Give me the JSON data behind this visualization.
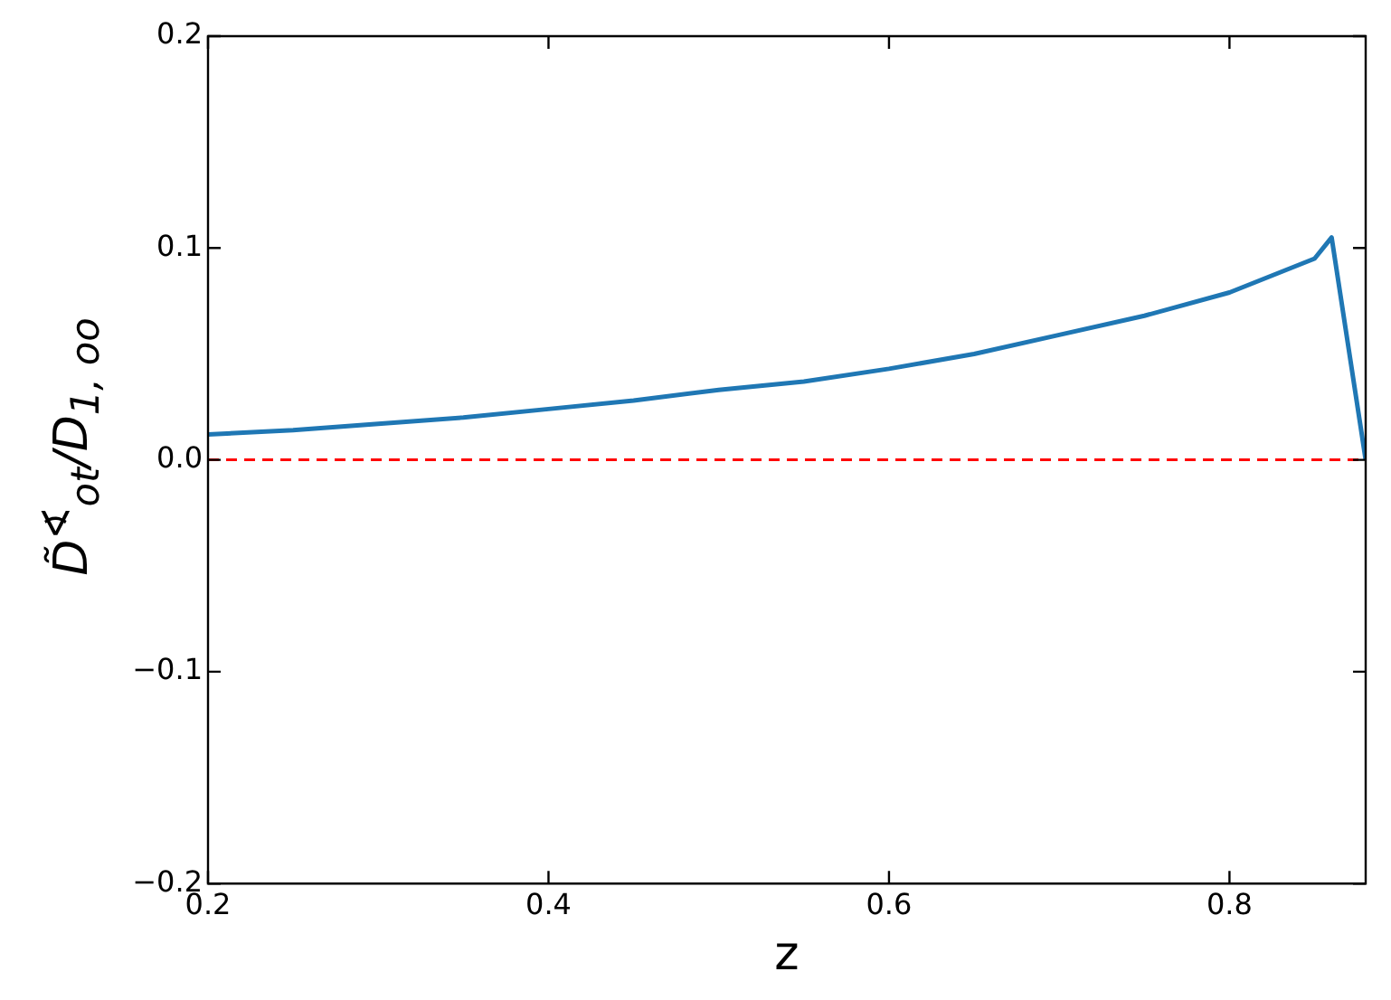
{
  "chart_data": {
    "type": "line",
    "xlabel": "z",
    "ylabel": "D̃$^{∢}$$_{ot}$/D$_{1, oo}$",
    "x": [
      0.2,
      0.25,
      0.3,
      0.35,
      0.4,
      0.45,
      0.5,
      0.55,
      0.6,
      0.65,
      0.7,
      0.75,
      0.8,
      0.85,
      0.86,
      0.88
    ],
    "series": [
      {
        "color": "#1f77b4",
        "values": [
          0.012,
          0.014,
          0.017,
          0.02,
          0.024,
          0.028,
          0.033,
          0.037,
          0.043,
          0.05,
          0.059,
          0.068,
          0.079,
          0.095,
          0.105,
          0.0
        ]
      }
    ],
    "xlim": [
      0.2,
      0.88
    ],
    "xticks": [
      0.2,
      0.4,
      0.6,
      0.8
    ],
    "ylim": [
      -0.2,
      0.2
    ],
    "yticks": [
      {
        "value": -0.2,
        "label": "−0.2"
      },
      {
        "value": -0.1,
        "label": "−0.1"
      },
      {
        "value": 0,
        "label": "0.0"
      },
      {
        "value": 0.1,
        "label": "0.1"
      },
      {
        "value": 0.2,
        "label": "0.2"
      }
    ],
    "ref_lines": [
      {
        "axis": "y",
        "value": 0,
        "color": "#ff0000",
        "line_style": "dashed"
      }
    ],
    "grid": false,
    "legend": false,
    "marker": "none",
    "line_style": "solid"
  }
}
